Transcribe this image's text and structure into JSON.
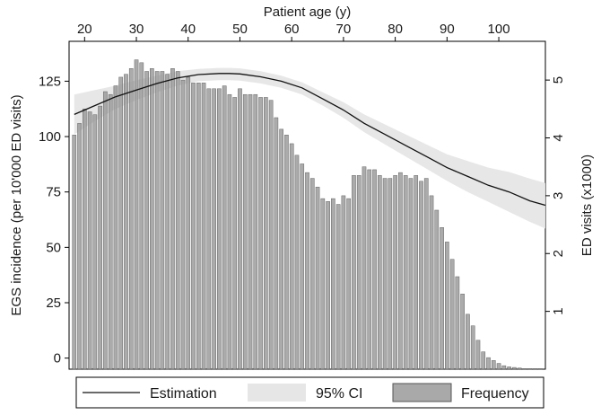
{
  "chart_data": {
    "type": "bar+line",
    "title": "",
    "x_axis": {
      "label": "Patient age (y)",
      "position": "top",
      "range": [
        17,
        109
      ],
      "ticks": [
        20,
        30,
        40,
        50,
        60,
        70,
        80,
        90,
        100
      ]
    },
    "y_left": {
      "label": "EGS incidence (per 10'000 ED visits)",
      "range": [
        -5,
        143
      ],
      "ticks": [
        0,
        25,
        50,
        75,
        100,
        125
      ]
    },
    "y_right": {
      "label": "ED visits (x1000)",
      "range": [
        0,
        5.67
      ],
      "ticks": [
        1,
        2,
        3,
        4,
        5
      ]
    },
    "frequency_bars": {
      "name": "Frequency",
      "axis": "right",
      "color": "#999999",
      "ages": [
        18,
        19,
        20,
        21,
        22,
        23,
        24,
        25,
        26,
        27,
        28,
        29,
        30,
        31,
        32,
        33,
        34,
        35,
        36,
        37,
        38,
        39,
        40,
        41,
        42,
        43,
        44,
        45,
        46,
        47,
        48,
        49,
        50,
        51,
        52,
        53,
        54,
        55,
        56,
        57,
        58,
        59,
        60,
        61,
        62,
        63,
        64,
        65,
        66,
        67,
        68,
        69,
        70,
        71,
        72,
        73,
        74,
        75,
        76,
        77,
        78,
        79,
        80,
        81,
        82,
        83,
        84,
        85,
        86,
        87,
        88,
        89,
        90,
        91,
        92,
        93,
        94,
        95,
        96,
        97,
        98,
        99,
        100,
        101,
        102,
        103,
        104,
        105,
        106,
        107,
        108
      ],
      "values": [
        4.05,
        4.25,
        4.5,
        4.45,
        4.4,
        4.55,
        4.8,
        4.75,
        4.9,
        5.05,
        5.1,
        5.2,
        5.35,
        5.3,
        5.15,
        5.2,
        5.15,
        5.15,
        5.1,
        5.2,
        5.15,
        5.0,
        5.05,
        4.95,
        4.95,
        4.95,
        4.85,
        4.85,
        4.85,
        4.9,
        4.75,
        4.7,
        4.85,
        4.75,
        4.75,
        4.75,
        4.7,
        4.7,
        4.65,
        4.35,
        4.15,
        4.05,
        3.9,
        3.7,
        3.55,
        3.4,
        3.3,
        3.15,
        2.95,
        2.9,
        2.95,
        2.85,
        3.0,
        2.95,
        3.35,
        3.35,
        3.5,
        3.45,
        3.45,
        3.35,
        3.3,
        3.3,
        3.35,
        3.4,
        3.35,
        3.3,
        3.35,
        3.25,
        3.3,
        3.0,
        2.75,
        2.45,
        2.2,
        1.9,
        1.6,
        1.3,
        0.95,
        0.75,
        0.5,
        0.3,
        0.2,
        0.15,
        0.1,
        0.06,
        0.04,
        0.03,
        0.02,
        0.01,
        0.01,
        0.01,
        0.01
      ]
    },
    "estimation": {
      "name": "Estimation",
      "axis": "left",
      "color": "#111111",
      "x": [
        18,
        22,
        26,
        30,
        34,
        38,
        42,
        46,
        48,
        50,
        54,
        58,
        62,
        66,
        70,
        74,
        78,
        82,
        86,
        90,
        94,
        98,
        102,
        106,
        109
      ],
      "y": [
        110,
        114,
        118,
        121,
        124,
        126.5,
        128,
        128.5,
        128.5,
        128.3,
        127,
        125,
        122,
        117,
        112,
        106,
        101,
        96,
        91,
        86,
        82,
        78,
        75,
        71,
        69
      ]
    },
    "ci95": {
      "name": "95% CI",
      "axis": "left",
      "color": "#e6e6e6",
      "x": [
        18,
        22,
        26,
        30,
        34,
        38,
        42,
        46,
        48,
        50,
        54,
        58,
        62,
        66,
        70,
        74,
        78,
        82,
        86,
        90,
        94,
        98,
        102,
        106,
        109
      ],
      "upper": [
        119,
        121,
        123,
        125.5,
        127.5,
        129.5,
        130.5,
        131,
        131,
        130.8,
        129.5,
        127.5,
        124.5,
        120,
        115.5,
        110,
        105.5,
        101,
        96.5,
        92,
        89,
        86,
        84,
        81,
        79
      ],
      "lower": [
        101,
        107,
        112.5,
        116.5,
        120,
        123,
        125,
        125.5,
        125.5,
        125.3,
        124,
        122,
        119,
        114,
        108.5,
        102,
        96.5,
        91,
        85.5,
        80,
        75,
        70.5,
        66,
        61.5,
        58.5
      ]
    },
    "legend": {
      "position": "bottom",
      "items": [
        {
          "label": "Estimation",
          "kind": "line"
        },
        {
          "label": "95% CI",
          "kind": "band"
        },
        {
          "label": "Frequency",
          "kind": "bar"
        }
      ]
    }
  }
}
